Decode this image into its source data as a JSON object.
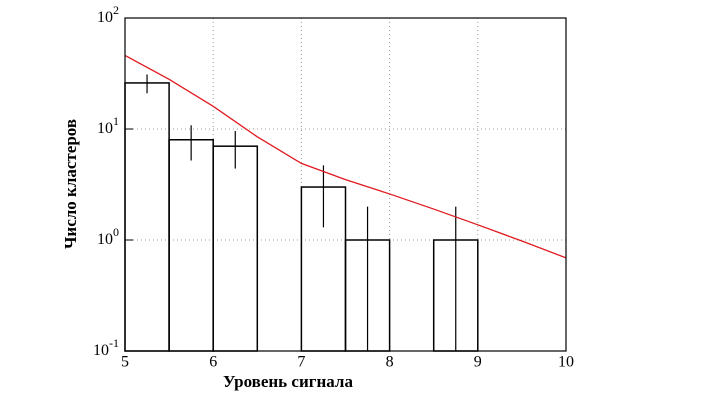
{
  "chart_data": {
    "type": "histogram",
    "x_label": "Уровень сигнала",
    "y_label": "Число кластеров",
    "bins": [
      5,
      5.5,
      6,
      6.5,
      7,
      7.5,
      8,
      8.5,
      9,
      9.5,
      10
    ],
    "values": [
      26,
      8,
      7,
      0,
      3,
      1,
      0,
      1,
      0,
      0
    ],
    "errors": [
      5,
      2.8,
      2.6,
      0,
      1.7,
      1,
      0,
      1,
      0,
      0
    ],
    "color": "#000000",
    "fit": {
      "color": "#e0191f",
      "x": [
        5,
        5.5,
        6,
        6.5,
        7,
        7.5,
        8,
        8.5,
        9,
        9.5,
        10
      ],
      "values": [
        46,
        28,
        16,
        8.5,
        4.9,
        3.5,
        2.6,
        1.9,
        1.37,
        0.98,
        0.69
      ]
    },
    "xlim": [
      5,
      10
    ],
    "xticks": [
      5,
      6,
      7,
      8,
      9,
      10
    ],
    "ylim": [
      0.1,
      100
    ],
    "log_y": true,
    "yticks": [
      {
        "value": 0.1,
        "label": "10",
        "exponent": "-1"
      },
      {
        "value": 1,
        "label": "10",
        "exponent": "0"
      },
      {
        "value": 10,
        "label": "10",
        "exponent": "1"
      },
      {
        "value": 100,
        "label": "10",
        "exponent": "2"
      }
    ],
    "grid": true
  }
}
